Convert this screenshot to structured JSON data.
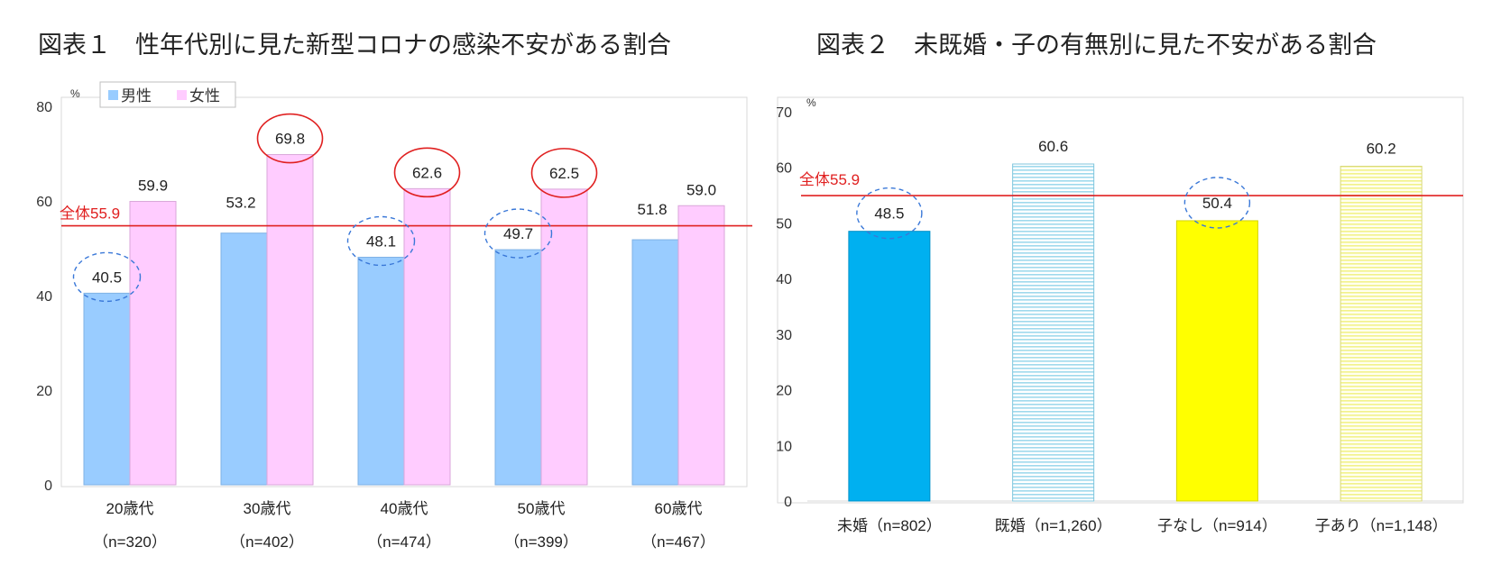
{
  "colors": {
    "male": "#99ccff",
    "female": "#ffccff",
    "overall_line": "#e02020",
    "highlight_high": "#e02020",
    "highlight_low": "#3a78d8",
    "unmarried": "#00b0f0",
    "married_pattern": "#9fd9ec",
    "no_children": "#ffff00",
    "with_children_pattern": "#f2f28a"
  },
  "chart_data": [
    {
      "type": "bar",
      "title": "図表１　性年代別に見た新型コロナの感染不安がある割合",
      "unit_label": "%",
      "ylim": [
        0,
        80
      ],
      "yticks": [
        0,
        20,
        40,
        60,
        80
      ],
      "categories": [
        "20歳代",
        "30歳代",
        "40歳代",
        "50歳代",
        "60歳代"
      ],
      "category_sublabels": [
        "（n=320）",
        "（n=402）",
        "（n=474）",
        "（n=399）",
        "（n=467）"
      ],
      "series": [
        {
          "name": "男性",
          "values": [
            40.5,
            53.2,
            48.1,
            49.7,
            51.8
          ],
          "labels": [
            "40.5",
            "53.2",
            "48.1",
            "49.7",
            "51.8"
          ]
        },
        {
          "name": "女性",
          "values": [
            59.9,
            69.8,
            62.6,
            62.5,
            59.0
          ],
          "labels": [
            "59.9",
            "69.8",
            "62.6",
            "62.5",
            "59.0"
          ]
        }
      ],
      "legend": "top-left",
      "reference_line": {
        "label": "全体55.9",
        "value": 55.9
      },
      "highlights": {
        "high": [
          [
            1,
            1
          ],
          [
            1,
            2
          ],
          [
            1,
            3
          ]
        ],
        "low": [
          [
            0,
            0
          ],
          [
            0,
            2
          ],
          [
            0,
            3
          ]
        ]
      }
    },
    {
      "type": "bar",
      "title": "図表２　未既婚・子の有無別に見た不安がある割合",
      "unit_label": "%",
      "ylim": [
        0,
        70
      ],
      "yticks": [
        0,
        10,
        20,
        30,
        40,
        50,
        60,
        70
      ],
      "categories": [
        "未婚（n=802）",
        "既婚（n=1,260）",
        "子なし（n=914）",
        "子あり（n=1,148）"
      ],
      "values": [
        48.5,
        60.6,
        50.4,
        60.2
      ],
      "labels": [
        "48.5",
        "60.6",
        "50.4",
        "60.2"
      ],
      "reference_line": {
        "label": "全体55.9",
        "value": 55.9
      },
      "highlights": {
        "low": [
          0,
          2
        ]
      }
    }
  ]
}
